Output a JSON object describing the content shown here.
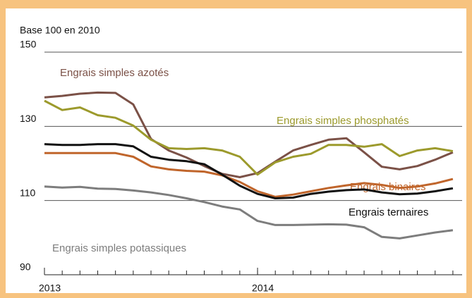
{
  "chart_data": {
    "type": "line",
    "ylabel": "Base 100 en 2010",
    "x": [
      2013,
      2013.0833,
      2013.1667,
      2013.25,
      2013.3333,
      2013.4167,
      2013.5,
      2013.5833,
      2013.6667,
      2013.75,
      2013.8333,
      2013.9167,
      2014,
      2014.0833,
      2014.1667,
      2014.25,
      2014.3333,
      2014.4167,
      2014.5,
      2014.5833,
      2014.6667,
      2014.75,
      2014.8333,
      2014.9167
    ],
    "xlim": [
      2013,
      2014.96
    ],
    "xticks": [
      2013,
      2014
    ],
    "ylim": [
      90,
      150
    ],
    "yticks": [
      90,
      110,
      130,
      150
    ],
    "grid": true,
    "series": [
      {
        "name": "Engrais simples azotés",
        "color": "#7b5147",
        "values": [
          137.8,
          138.2,
          138.8,
          139.1,
          139,
          135.9,
          126.6,
          123.5,
          121.6,
          119.3,
          117.2,
          116.3,
          117.4,
          120.5,
          123.5,
          125,
          126.4,
          126.8,
          123,
          119.1,
          118.4,
          119.3,
          121,
          123
        ]
      },
      {
        "name": "Engrais simples phosphatés",
        "color": "#9c9a2c",
        "values": [
          136.9,
          134.4,
          135.1,
          133,
          132.3,
          130.2,
          126.4,
          124.1,
          123.9,
          124.1,
          123.5,
          121.8,
          117,
          120.3,
          121.8,
          122.6,
          125,
          125,
          124.5,
          125.2,
          122,
          123.5,
          124.1,
          123.3
        ]
      },
      {
        "name": "Engrais binaires",
        "color": "#c0652b",
        "values": [
          122.8,
          122.8,
          122.8,
          122.8,
          122.8,
          121.8,
          119.2,
          118.4,
          118,
          117.8,
          116.8,
          115,
          112.5,
          111,
          111.6,
          112.5,
          113.4,
          114.1,
          114.7,
          114.2,
          113.4,
          113.8,
          114.6,
          115.8
        ]
      },
      {
        "name": "Engrais ternaires",
        "color": "#111111",
        "values": [
          125.2,
          125,
          125,
          125.2,
          125.2,
          124.6,
          121.8,
          121,
          120.6,
          119.8,
          117,
          114,
          111.8,
          110.6,
          110.8,
          111.8,
          112.4,
          112.8,
          113,
          112.2,
          111.7,
          111.9,
          112.5,
          113.3
        ]
      },
      {
        "name": "Engrais simples potassiques",
        "color": "#7d7d7d",
        "values": [
          113.8,
          113.5,
          113.7,
          113.2,
          113.1,
          112.7,
          112.2,
          111.5,
          110.6,
          109.6,
          108.4,
          107.6,
          104.5,
          103.4,
          103.4,
          103.5,
          103.6,
          103.5,
          102.8,
          100.2,
          99.8,
          100.6,
          101.4,
          102
        ]
      }
    ]
  }
}
